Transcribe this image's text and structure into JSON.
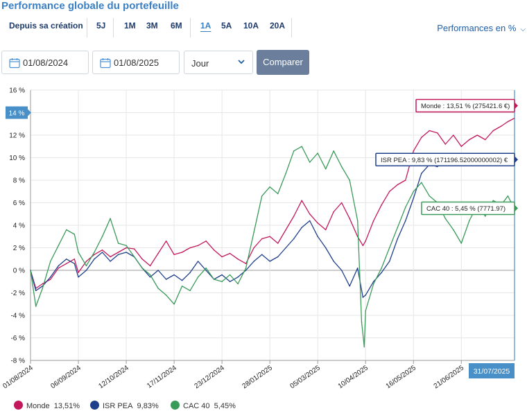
{
  "header": {
    "title": "Performance globale du portefeuille",
    "periods": [
      "Depuis sa création",
      "5J",
      "1M",
      "3M",
      "6M",
      "1A",
      "5A",
      "10A",
      "20A"
    ],
    "active_period": "1A",
    "perf_select": "Performances en %"
  },
  "filters": {
    "start_date": "01/08/2024",
    "end_date": "01/08/2025",
    "granularity": "Jour",
    "compare_label": "Comparer"
  },
  "chart_data": {
    "type": "line",
    "ylim": [
      -8,
      16
    ],
    "yticks": [
      -8,
      -6,
      -4,
      -2,
      0,
      2,
      4,
      6,
      8,
      10,
      12,
      14,
      16
    ],
    "ytick_labels": [
      "-8 %",
      "-6 %",
      "-4 %",
      "-2 %",
      "0 %",
      "2 %",
      "4 %",
      "6 %",
      "8 %",
      "10 %",
      "12 %",
      "14 %",
      "16 %"
    ],
    "xlim": [
      "2024-08-01",
      "2025-07-31"
    ],
    "xtick_dates": [
      "2024-08-01",
      "2024-09-06",
      "2024-10-12",
      "2024-11-17",
      "2024-12-23",
      "2025-01-28",
      "2025-03-05",
      "2025-04-10",
      "2025-05-16",
      "2025-06-21"
    ],
    "xtick_labels": [
      "01/08/2024",
      "06/09/2024",
      "12/10/2024",
      "17/11/2024",
      "23/12/2024",
      "28/01/2025",
      "05/03/2025",
      "10/04/2025",
      "16/05/2025",
      "21/06/2025"
    ],
    "crosshair": {
      "y_label": "14 %",
      "x_label": "31/07/2025"
    },
    "series": [
      {
        "name": "Monde",
        "color": "#c2185b",
        "legend_value": "13,51%",
        "tooltip": "Monde : 13,51 % (275421.6 €)",
        "points": [
          [
            "2024-08-01",
            0.0
          ],
          [
            "2024-08-05",
            -1.6
          ],
          [
            "2024-08-10",
            -1.2
          ],
          [
            "2024-08-16",
            -0.8
          ],
          [
            "2024-08-22",
            0.2
          ],
          [
            "2024-08-28",
            0.6
          ],
          [
            "2024-09-03",
            1.0
          ],
          [
            "2024-09-06",
            -0.2
          ],
          [
            "2024-09-12",
            0.8
          ],
          [
            "2024-09-18",
            1.4
          ],
          [
            "2024-09-24",
            1.8
          ],
          [
            "2024-09-30",
            1.2
          ],
          [
            "2024-10-06",
            1.6
          ],
          [
            "2024-10-12",
            2.0
          ],
          [
            "2024-10-18",
            1.9
          ],
          [
            "2024-10-24",
            1.0
          ],
          [
            "2024-10-30",
            0.4
          ],
          [
            "2024-11-05",
            1.5
          ],
          [
            "2024-11-11",
            2.6
          ],
          [
            "2024-11-17",
            1.4
          ],
          [
            "2024-11-23",
            1.6
          ],
          [
            "2024-11-29",
            2.0
          ],
          [
            "2024-12-05",
            2.2
          ],
          [
            "2024-12-11",
            2.6
          ],
          [
            "2024-12-17",
            1.8
          ],
          [
            "2024-12-23",
            1.2
          ],
          [
            "2024-12-29",
            1.5
          ],
          [
            "2025-01-04",
            1.0
          ],
          [
            "2025-01-10",
            0.6
          ],
          [
            "2025-01-16",
            2.0
          ],
          [
            "2025-01-22",
            2.8
          ],
          [
            "2025-01-28",
            3.0
          ],
          [
            "2025-02-03",
            2.4
          ],
          [
            "2025-02-09",
            3.6
          ],
          [
            "2025-02-15",
            4.8
          ],
          [
            "2025-02-21",
            6.2
          ],
          [
            "2025-02-27",
            5.0
          ],
          [
            "2025-03-05",
            4.2
          ],
          [
            "2025-03-11",
            3.6
          ],
          [
            "2025-03-17",
            5.2
          ],
          [
            "2025-03-23",
            6.0
          ],
          [
            "2025-03-29",
            4.6
          ],
          [
            "2025-04-04",
            3.0
          ],
          [
            "2025-04-08",
            2.2
          ],
          [
            "2025-04-10",
            2.6
          ],
          [
            "2025-04-16",
            4.4
          ],
          [
            "2025-04-22",
            5.8
          ],
          [
            "2025-04-28",
            7.0
          ],
          [
            "2025-05-04",
            7.6
          ],
          [
            "2025-05-10",
            8.0
          ],
          [
            "2025-05-16",
            10.6
          ],
          [
            "2025-05-22",
            11.8
          ],
          [
            "2025-05-28",
            12.4
          ],
          [
            "2025-06-03",
            12.2
          ],
          [
            "2025-06-09",
            11.2
          ],
          [
            "2025-06-15",
            12.0
          ],
          [
            "2025-06-21",
            11.0
          ],
          [
            "2025-06-27",
            11.6
          ],
          [
            "2025-07-03",
            12.0
          ],
          [
            "2025-07-09",
            11.6
          ],
          [
            "2025-07-15",
            12.4
          ],
          [
            "2025-07-21",
            12.8
          ],
          [
            "2025-07-26",
            13.2
          ],
          [
            "2025-07-31",
            13.51
          ]
        ]
      },
      {
        "name": "ISR PEA",
        "color": "#1f3f8a",
        "legend_value": "9,83%",
        "tooltip": "ISR PEA : 9,83 % (171196.52000000002) €",
        "points": [
          [
            "2024-08-01",
            0.0
          ],
          [
            "2024-08-05",
            -1.8
          ],
          [
            "2024-08-10",
            -1.4
          ],
          [
            "2024-08-16",
            -0.6
          ],
          [
            "2024-08-22",
            0.4
          ],
          [
            "2024-08-28",
            1.0
          ],
          [
            "2024-09-03",
            0.6
          ],
          [
            "2024-09-06",
            -0.6
          ],
          [
            "2024-09-12",
            0.0
          ],
          [
            "2024-09-18",
            1.0
          ],
          [
            "2024-09-24",
            1.6
          ],
          [
            "2024-09-30",
            0.8
          ],
          [
            "2024-10-06",
            1.4
          ],
          [
            "2024-10-12",
            1.6
          ],
          [
            "2024-10-18",
            1.2
          ],
          [
            "2024-10-24",
            0.2
          ],
          [
            "2024-10-30",
            -0.6
          ],
          [
            "2024-11-05",
            0.0
          ],
          [
            "2024-11-11",
            -0.8
          ],
          [
            "2024-11-17",
            -0.4
          ],
          [
            "2024-11-23",
            -0.9
          ],
          [
            "2024-11-29",
            -0.2
          ],
          [
            "2024-12-05",
            0.8
          ],
          [
            "2024-12-11",
            0.0
          ],
          [
            "2024-12-17",
            -0.8
          ],
          [
            "2024-12-23",
            -0.4
          ],
          [
            "2024-12-29",
            -1.0
          ],
          [
            "2025-01-04",
            -0.6
          ],
          [
            "2025-01-10",
            0.0
          ],
          [
            "2025-01-16",
            0.8
          ],
          [
            "2025-01-22",
            1.4
          ],
          [
            "2025-01-28",
            0.8
          ],
          [
            "2025-02-03",
            1.2
          ],
          [
            "2025-02-09",
            2.0
          ],
          [
            "2025-02-15",
            2.8
          ],
          [
            "2025-02-21",
            3.8
          ],
          [
            "2025-02-27",
            4.4
          ],
          [
            "2025-03-05",
            3.0
          ],
          [
            "2025-03-11",
            2.0
          ],
          [
            "2025-03-17",
            0.8
          ],
          [
            "2025-03-23",
            0.0
          ],
          [
            "2025-03-29",
            -1.4
          ],
          [
            "2025-04-04",
            0.2
          ],
          [
            "2025-04-08",
            -2.4
          ],
          [
            "2025-04-10",
            -2.2
          ],
          [
            "2025-04-16",
            -1.0
          ],
          [
            "2025-04-22",
            -0.2
          ],
          [
            "2025-04-28",
            0.8
          ],
          [
            "2025-05-04",
            2.8
          ],
          [
            "2025-05-10",
            4.4
          ],
          [
            "2025-05-16",
            6.4
          ],
          [
            "2025-05-22",
            8.6
          ],
          [
            "2025-05-28",
            9.4
          ],
          [
            "2025-06-03",
            9.2
          ],
          [
            "2025-06-09",
            10.0
          ],
          [
            "2025-06-15",
            9.6
          ],
          [
            "2025-06-21",
            9.8
          ],
          [
            "2025-06-27",
            9.4
          ],
          [
            "2025-07-03",
            9.8
          ],
          [
            "2025-07-09",
            9.6
          ],
          [
            "2025-07-15",
            10.0
          ],
          [
            "2025-07-21",
            9.4
          ],
          [
            "2025-07-26",
            9.6
          ],
          [
            "2025-07-31",
            9.83
          ]
        ]
      },
      {
        "name": "CAC 40",
        "color": "#3a9a5a",
        "legend_value": "5,45%",
        "tooltip": "CAC 40 : 5,45 % (7771.97)",
        "points": [
          [
            "2024-08-01",
            0.0
          ],
          [
            "2024-08-05",
            -3.2
          ],
          [
            "2024-08-10",
            -1.6
          ],
          [
            "2024-08-16",
            0.8
          ],
          [
            "2024-08-22",
            2.2
          ],
          [
            "2024-08-28",
            3.6
          ],
          [
            "2024-09-03",
            3.2
          ],
          [
            "2024-09-06",
            1.6
          ],
          [
            "2024-09-12",
            0.4
          ],
          [
            "2024-09-18",
            1.6
          ],
          [
            "2024-09-24",
            3.0
          ],
          [
            "2024-09-30",
            4.6
          ],
          [
            "2024-10-06",
            2.4
          ],
          [
            "2024-10-12",
            2.2
          ],
          [
            "2024-10-18",
            1.2
          ],
          [
            "2024-10-24",
            0.2
          ],
          [
            "2024-10-30",
            -0.4
          ],
          [
            "2024-11-05",
            -1.6
          ],
          [
            "2024-11-11",
            -2.2
          ],
          [
            "2024-11-17",
            -3.0
          ],
          [
            "2024-11-23",
            -1.4
          ],
          [
            "2024-11-29",
            -1.8
          ],
          [
            "2024-12-05",
            -0.6
          ],
          [
            "2024-12-11",
            0.2
          ],
          [
            "2024-12-17",
            -0.8
          ],
          [
            "2024-12-23",
            -1.0
          ],
          [
            "2024-12-29",
            -0.4
          ],
          [
            "2025-01-04",
            -1.2
          ],
          [
            "2025-01-10",
            0.2
          ],
          [
            "2025-01-16",
            3.4
          ],
          [
            "2025-01-22",
            6.6
          ],
          [
            "2025-01-28",
            7.4
          ],
          [
            "2025-02-03",
            6.8
          ],
          [
            "2025-02-09",
            8.6
          ],
          [
            "2025-02-15",
            10.6
          ],
          [
            "2025-02-21",
            11.0
          ],
          [
            "2025-02-27",
            9.6
          ],
          [
            "2025-03-05",
            10.4
          ],
          [
            "2025-03-11",
            9.0
          ],
          [
            "2025-03-17",
            10.6
          ],
          [
            "2025-03-23",
            9.2
          ],
          [
            "2025-03-29",
            8.0
          ],
          [
            "2025-04-04",
            4.4
          ],
          [
            "2025-04-07",
            -4.6
          ],
          [
            "2025-04-09",
            -6.8
          ],
          [
            "2025-04-10",
            -3.6
          ],
          [
            "2025-04-16",
            -1.2
          ],
          [
            "2025-04-22",
            0.2
          ],
          [
            "2025-04-28",
            2.0
          ],
          [
            "2025-05-04",
            3.8
          ],
          [
            "2025-05-10",
            5.6
          ],
          [
            "2025-05-16",
            7.0
          ],
          [
            "2025-05-22",
            7.8
          ],
          [
            "2025-05-28",
            6.6
          ],
          [
            "2025-06-03",
            6.0
          ],
          [
            "2025-06-09",
            4.6
          ],
          [
            "2025-06-15",
            3.6
          ],
          [
            "2025-06-21",
            2.4
          ],
          [
            "2025-06-27",
            4.4
          ],
          [
            "2025-07-03",
            5.8
          ],
          [
            "2025-07-09",
            4.8
          ],
          [
            "2025-07-15",
            6.2
          ],
          [
            "2025-07-21",
            5.8
          ],
          [
            "2025-07-26",
            6.6
          ],
          [
            "2025-07-31",
            5.45
          ]
        ]
      }
    ]
  }
}
